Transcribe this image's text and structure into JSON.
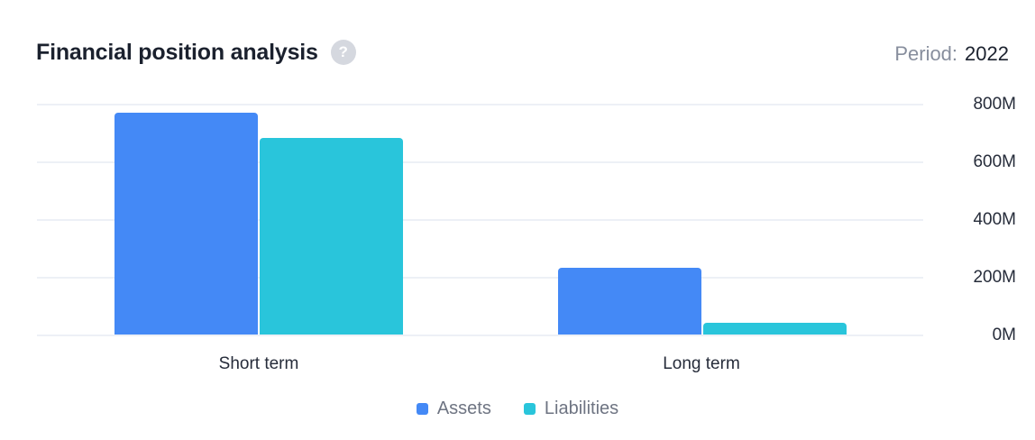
{
  "header": {
    "title": "Financial position analysis",
    "help_glyph": "?",
    "period_label": "Period:",
    "period_value": "2022"
  },
  "colors": {
    "assets": "#4489f6",
    "liabilities": "#29c5db",
    "gridline": "#edf0f6",
    "title_text": "#1b212e",
    "axis_text": "#262c3a",
    "muted_text": "#878e9d",
    "legend_text": "#6e7482",
    "help_bg": "#d5d8df"
  },
  "chart_data": {
    "type": "bar",
    "title": "Financial position analysis",
    "categories": [
      "Short term",
      "Long term"
    ],
    "series": [
      {
        "name": "Assets",
        "color": "#4489f6",
        "values": [
          770,
          230
        ]
      },
      {
        "name": "Liabilities",
        "color": "#29c5db",
        "values": [
          680,
          40
        ]
      }
    ],
    "unit": "M",
    "ylim": [
      0,
      800
    ],
    "yticks": [
      "800M",
      "600M",
      "400M",
      "200M",
      "0M"
    ],
    "grid": true,
    "legend_position": "bottom"
  }
}
